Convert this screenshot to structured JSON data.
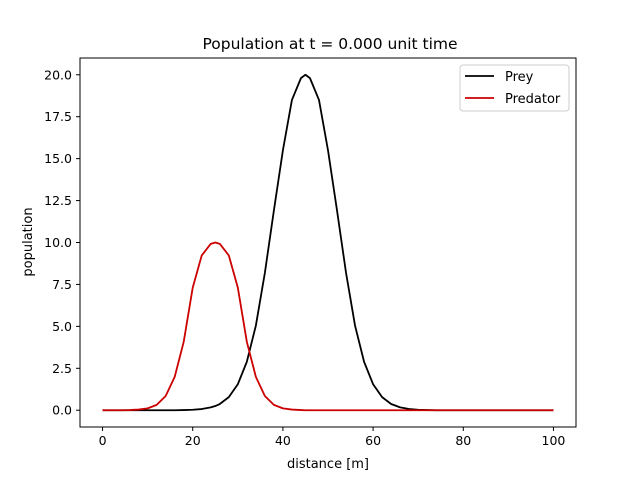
{
  "chart_data": {
    "type": "line",
    "title": "Population at t = 0.000 unit time",
    "xlabel": "distance [m]",
    "ylabel": "population",
    "xlim": [
      -5,
      105
    ],
    "ylim": [
      -1,
      21
    ],
    "xticks": [
      0,
      20,
      40,
      60,
      80,
      100
    ],
    "xtick_labels": [
      "0",
      "20",
      "40",
      "60",
      "80",
      "100"
    ],
    "yticks": [
      0,
      2.5,
      5,
      7.5,
      10,
      12.5,
      15,
      17.5,
      20
    ],
    "ytick_labels": [
      "0.0",
      "2.5",
      "5.0",
      "7.5",
      "10.0",
      "12.5",
      "15.0",
      "17.5",
      "20.0"
    ],
    "grid": false,
    "legend_position": "top-right",
    "x": [
      0,
      2,
      4,
      6,
      8,
      10,
      12,
      14,
      16,
      18,
      20,
      22,
      24,
      25,
      26,
      28,
      30,
      32,
      34,
      36,
      38,
      40,
      42,
      44,
      45,
      46,
      48,
      50,
      52,
      54,
      56,
      58,
      60,
      62,
      64,
      66,
      68,
      70,
      72,
      74,
      76,
      78,
      80,
      85,
      90,
      95,
      100
    ],
    "series": [
      {
        "name": "Prey",
        "color": "#000000",
        "values": [
          0,
          0,
          0,
          0,
          0,
          0,
          0,
          0,
          0,
          0.01,
          0.03,
          0.07,
          0.17,
          0.25,
          0.37,
          0.78,
          1.55,
          2.89,
          5.04,
          8.19,
          11.91,
          15.5,
          18.5,
          19.8,
          20,
          19.8,
          18.5,
          15.5,
          11.91,
          8.19,
          5.04,
          2.89,
          1.55,
          0.78,
          0.37,
          0.17,
          0.07,
          0.03,
          0.01,
          0,
          0,
          0,
          0,
          0,
          0,
          0,
          0
        ]
      },
      {
        "name": "Predator",
        "color": "#cc0000",
        "values": [
          0,
          0,
          0,
          0.01,
          0.04,
          0.11,
          0.32,
          0.85,
          1.99,
          4.08,
          7.31,
          9.23,
          9.92,
          10,
          9.92,
          9.23,
          7.31,
          4.08,
          1.99,
          0.85,
          0.32,
          0.11,
          0.04,
          0.01,
          0,
          0,
          0,
          0,
          0,
          0,
          0,
          0,
          0,
          0,
          0,
          0,
          0,
          0,
          0,
          0,
          0,
          0,
          0,
          0,
          0,
          0,
          0
        ]
      }
    ]
  }
}
